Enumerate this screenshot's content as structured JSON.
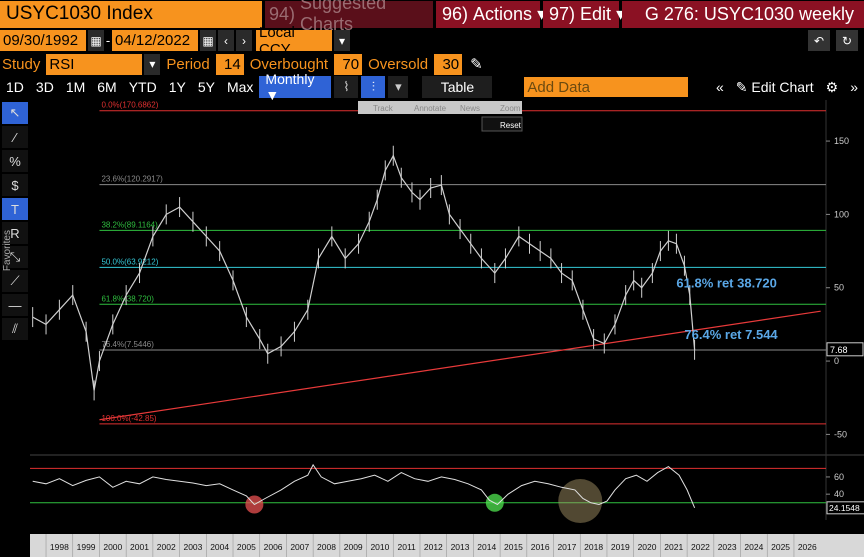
{
  "header": {
    "ticker": "USYC1030 Index",
    "suggested_num": "94)",
    "suggested_label": "Suggested Charts",
    "actions_num": "96)",
    "actions_label": "Actions",
    "edit_num": "97)",
    "edit_label": "Edit",
    "chart_title": "G 276: USYC1030 weekly"
  },
  "date_row": {
    "start_date": "09/30/1992",
    "end_date": "04/12/2022",
    "currency": "Local CCY"
  },
  "study_row": {
    "study_label": "Study",
    "study_value": "RSI",
    "period_label": "Period",
    "period_value": "14",
    "overbought_label": "Overbought",
    "overbought_value": "70",
    "oversold_label": "Oversold",
    "oversold_value": "30"
  },
  "range_row": {
    "ranges": [
      "1D",
      "3D",
      "1M",
      "6M",
      "YTD",
      "1Y",
      "5Y",
      "Max"
    ],
    "frequency": "Monthly ▼",
    "table_label": "Table",
    "add_data_placeholder": "Add Data",
    "edit_chart_label": "Edit Chart"
  },
  "chart_toolbar": {
    "track": "Track",
    "annotate": "Annotate",
    "news": "News",
    "zoom": "Zoom",
    "reset": "Reset"
  },
  "left_toolbar": {
    "favorites_label": "Favorites"
  },
  "colors": {
    "orange": "#f7931e",
    "brand_red": "#8b1123",
    "price_line": "#d0d0d0",
    "fib_red": "#e03030",
    "fib_green": "#2fbf3f",
    "fib_cyan": "#35c9d8",
    "fib_grey": "#8a8a8a",
    "annotation_blue": "#5aa7e6",
    "trend_red": "#e83a3a"
  },
  "chart_data": {
    "type": "line",
    "frequency": "weekly",
    "series": [
      {
        "name": "USYC1030",
        "x": [
          1997.5,
          1998.0,
          1998.5,
          1999.0,
          1999.5,
          1999.8,
          2000.0,
          2000.5,
          2001.0,
          2001.5,
          2002.0,
          2002.5,
          2003.0,
          2003.5,
          2004.0,
          2004.5,
          2005.0,
          2005.5,
          2006.0,
          2006.3,
          2006.8,
          2007.3,
          2007.8,
          2008.2,
          2008.7,
          2009.2,
          2009.7,
          2010.1,
          2010.4,
          2010.7,
          2011.0,
          2011.3,
          2011.7,
          2012.0,
          2012.4,
          2012.8,
          2013.1,
          2013.5,
          2013.9,
          2014.3,
          2014.8,
          2015.2,
          2015.7,
          2016.1,
          2016.5,
          2016.9,
          2017.3,
          2017.7,
          2018.1,
          2018.5,
          2018.9,
          2019.3,
          2019.7,
          2020.0,
          2020.3,
          2020.7,
          2021.0,
          2021.3,
          2021.6,
          2021.9,
          2022.1,
          2022.28
        ],
        "y": [
          30,
          25,
          35,
          45,
          20,
          -20,
          0,
          25,
          45,
          60,
          85,
          100,
          105,
          95,
          85,
          75,
          55,
          30,
          15,
          5,
          10,
          20,
          35,
          70,
          85,
          70,
          80,
          95,
          110,
          130,
          140,
          125,
          115,
          110,
          118,
          120,
          100,
          90,
          80,
          70,
          60,
          70,
          85,
          80,
          75,
          70,
          60,
          55,
          35,
          15,
          12,
          25,
          45,
          55,
          50,
          60,
          75,
          82,
          80,
          65,
          45,
          7.68
        ]
      },
      {
        "name": "RSI",
        "x": [
          1997.5,
          1998.0,
          1998.5,
          1999.0,
          1999.5,
          2000.0,
          2000.5,
          2001.0,
          2001.5,
          2002.0,
          2002.5,
          2003.0,
          2003.5,
          2004.0,
          2004.5,
          2005.0,
          2005.5,
          2005.8,
          2006.2,
          2006.8,
          2007.3,
          2007.8,
          2008.0,
          2008.3,
          2008.8,
          2009.3,
          2009.8,
          2010.3,
          2010.8,
          2011.3,
          2011.8,
          2012.3,
          2012.8,
          2013.3,
          2013.8,
          2014.3,
          2014.6,
          2014.9,
          2015.3,
          2015.8,
          2016.3,
          2016.8,
          2017.3,
          2017.8,
          2018.1,
          2018.4,
          2018.7,
          2019.0,
          2019.3,
          2019.7,
          2020.1,
          2020.5,
          2020.9,
          2021.3,
          2021.7,
          2022.0,
          2022.28
        ],
        "y": [
          55,
          52,
          58,
          50,
          56,
          60,
          48,
          55,
          52,
          60,
          57,
          55,
          53,
          50,
          52,
          45,
          38,
          28,
          35,
          45,
          55,
          62,
          74,
          60,
          52,
          55,
          58,
          62,
          55,
          65,
          58,
          55,
          60,
          57,
          52,
          45,
          33,
          28,
          40,
          50,
          55,
          52,
          48,
          45,
          35,
          30,
          28,
          32,
          45,
          58,
          62,
          55,
          65,
          72,
          62,
          45,
          24.1548
        ]
      }
    ],
    "x_ticks": [
      "1998",
      "1999",
      "2000",
      "2001",
      "2002",
      "2003",
      "2004",
      "2005",
      "2006",
      "2007",
      "2008",
      "2009",
      "2010",
      "2011",
      "2012",
      "2013",
      "2014",
      "2015",
      "2016",
      "2017",
      "2018",
      "2019",
      "2020",
      "2021",
      "2022",
      "2023",
      "2024",
      "2025",
      "2026"
    ],
    "y_ticks": [
      150,
      100,
      50,
      0,
      -50
    ],
    "ylim": [
      -62,
      178
    ],
    "rsi_ticks": [
      60,
      40
    ],
    "rsi_ylim": [
      10,
      82
    ],
    "rsi_overbought": 70,
    "rsi_oversold": 30,
    "fib_levels": [
      {
        "label": "0.0%(170.6862)",
        "value": 170.6862,
        "color": "red"
      },
      {
        "label": "23.6%(120.2917)",
        "value": 120.2917,
        "color": "grey"
      },
      {
        "label": "38.2%(89.1164)",
        "value": 89.1164,
        "color": "green"
      },
      {
        "label": "50.0%(63.9212)",
        "value": 63.9212,
        "color": "cyan"
      },
      {
        "label": "61.8%(38.720)",
        "value": 38.72,
        "color": "green"
      },
      {
        "label": "76.4%(7.5446)",
        "value": 7.5446,
        "color": "grey"
      },
      {
        "label": "100.0%(-42.85)",
        "value": -42.85,
        "color": "red"
      }
    ],
    "annotations": [
      "61.8% ret 38.720",
      "76.4% ret 7.544"
    ],
    "last_price_label": "7.68",
    "last_rsi_label": "24.1548",
    "trendline": {
      "x1": 2000.0,
      "y1": -40,
      "x2": 2027.0,
      "y2": 34
    },
    "highlight_circles": [
      {
        "x": 2005.8,
        "y": 28,
        "color": "red"
      },
      {
        "x": 2014.8,
        "y": 30,
        "color": "green"
      },
      {
        "x": 2018.0,
        "y": 32,
        "color": "tan"
      }
    ]
  }
}
